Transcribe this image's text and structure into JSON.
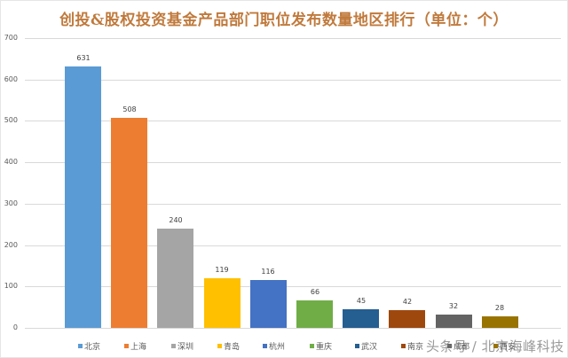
{
  "title": "创投&股权投资基金产品部门职位发布数量地区排行（单位：个）",
  "title_color": "#c07a3c",
  "watermark": "头条号 / 北京海峰科技",
  "chart_data": {
    "type": "bar",
    "title": "创投&股权投资基金产品部门职位发布数量地区排行（单位：个）",
    "xlabel": "",
    "ylabel": "",
    "ylim": [
      0,
      700
    ],
    "yticks": [
      0,
      100,
      200,
      300,
      400,
      500,
      600,
      700
    ],
    "grid": true,
    "legend_position": "bottom",
    "categories": [
      "北京",
      "上海",
      "深圳",
      "青岛",
      "杭州",
      "重庆",
      "武汉",
      "南京",
      "成都",
      "西安"
    ],
    "values": [
      631,
      508,
      240,
      119,
      116,
      66,
      45,
      42,
      32,
      28
    ],
    "colors": [
      "#5b9bd5",
      "#ed7d31",
      "#a5a5a5",
      "#ffc000",
      "#4472c4",
      "#70ad47",
      "#255e91",
      "#9e480e",
      "#636363",
      "#997300"
    ],
    "series": [
      {
        "name": "北京",
        "value": 631,
        "color": "#5b9bd5"
      },
      {
        "name": "上海",
        "value": 508,
        "color": "#ed7d31"
      },
      {
        "name": "深圳",
        "value": 240,
        "color": "#a5a5a5"
      },
      {
        "name": "青岛",
        "value": 119,
        "color": "#ffc000"
      },
      {
        "name": "杭州",
        "value": 116,
        "color": "#4472c4"
      },
      {
        "name": "重庆",
        "value": 66,
        "color": "#70ad47"
      },
      {
        "name": "武汉",
        "value": 45,
        "color": "#255e91"
      },
      {
        "name": "南京",
        "value": 42,
        "color": "#9e480e"
      },
      {
        "name": "成都",
        "value": 32,
        "color": "#636363"
      },
      {
        "name": "西安",
        "value": 28,
        "color": "#997300"
      }
    ]
  }
}
